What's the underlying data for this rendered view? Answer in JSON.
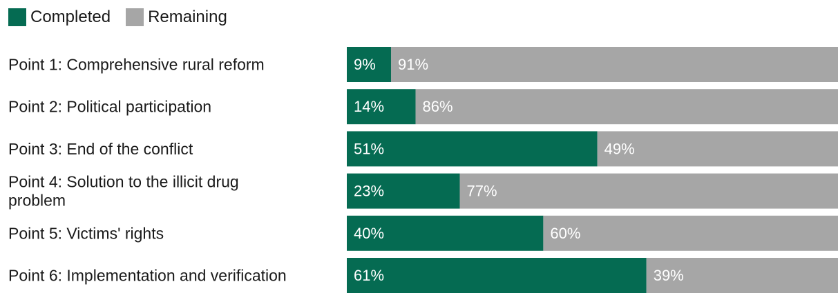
{
  "legend": {
    "completed_label": "Completed",
    "remaining_label": "Remaining"
  },
  "colors": {
    "completed": "#056b52",
    "remaining": "#a6a6a6"
  },
  "chart_data": {
    "type": "bar",
    "orientation": "horizontal",
    "stacked": true,
    "categories": [
      [
        "Point 1: Comprehensive rural reform"
      ],
      [
        "Point 2: Political participation"
      ],
      [
        "Point 3: End of the conflict"
      ],
      [
        "Point 4: Solution to the illicit drug",
        "problem"
      ],
      [
        "Point 5: Victims' rights"
      ],
      [
        "Point 6: Implementation and verification"
      ]
    ],
    "series": [
      {
        "name": "Completed",
        "values": [
          9,
          14,
          51,
          23,
          40,
          61
        ],
        "labels": [
          "9%",
          "14%",
          "51%",
          "23%",
          "40%",
          "61%"
        ]
      },
      {
        "name": "Remaining",
        "values": [
          91,
          86,
          49,
          77,
          60,
          39
        ],
        "labels": [
          "91%",
          "86%",
          "49%",
          "77%",
          "60%",
          "39%"
        ]
      }
    ],
    "xlim": [
      0,
      100
    ],
    "grid": false,
    "legend_position": "top-left"
  }
}
